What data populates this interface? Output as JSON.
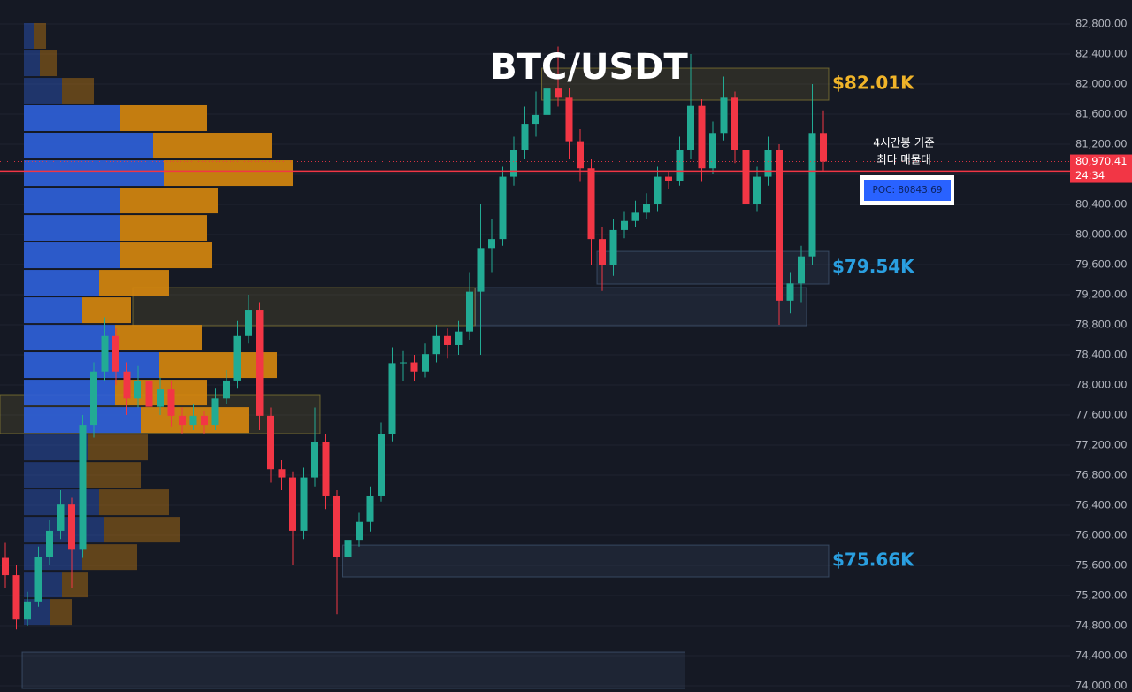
{
  "chart_data": {
    "type": "candlestick",
    "title": "BTC/USDT",
    "ylim": [
      73918,
      83118
    ],
    "yticks": [
      {
        "value": 74000,
        "label": "74,000.00"
      },
      {
        "value": 74400,
        "label": "74,400.00"
      },
      {
        "value": 74800,
        "label": "74,800.00"
      },
      {
        "value": 75200,
        "label": "75,200.00"
      },
      {
        "value": 75600,
        "label": "75,600.00"
      },
      {
        "value": 76000,
        "label": "76,000.00"
      },
      {
        "value": 76400,
        "label": "76,400.00"
      },
      {
        "value": 76800,
        "label": "76,800.00"
      },
      {
        "value": 77200,
        "label": "77,200.00"
      },
      {
        "value": 77600,
        "label": "77,600.00"
      },
      {
        "value": 78000,
        "label": "78,000.00"
      },
      {
        "value": 78400,
        "label": "78,400.00"
      },
      {
        "value": 78800,
        "label": "78,800.00"
      },
      {
        "value": 79200,
        "label": "79,200.00"
      },
      {
        "value": 79600,
        "label": "79,600.00"
      },
      {
        "value": 80000,
        "label": "80,000.00"
      },
      {
        "value": 80400,
        "label": "80,400.00"
      },
      {
        "value": 80800,
        "label": "80,800.00"
      },
      {
        "value": 81200,
        "label": "81,200.00"
      },
      {
        "value": 81600,
        "label": "81,600.00"
      },
      {
        "value": 82000,
        "label": "82,000.00"
      },
      {
        "value": 82400,
        "label": "82,400.00"
      },
      {
        "value": 82800,
        "label": "82,800.00"
      }
    ],
    "grid": true,
    "up_color": "#22ab94",
    "down_color": "#f23645",
    "candles": [
      [
        75700,
        75900,
        75300,
        75470
      ],
      [
        75470,
        75600,
        74750,
        74880
      ],
      [
        74880,
        75250,
        74800,
        75120
      ],
      [
        75120,
        75850,
        75050,
        75710
      ],
      [
        75710,
        76200,
        75600,
        76060
      ],
      [
        76060,
        76600,
        75950,
        76410
      ],
      [
        76410,
        76500,
        75300,
        75820
      ],
      [
        75820,
        77600,
        75700,
        77470
      ],
      [
        77470,
        78300,
        77300,
        78180
      ],
      [
        78180,
        78900,
        78050,
        78650
      ],
      [
        78650,
        78750,
        78000,
        78180
      ],
      [
        78180,
        78300,
        77600,
        77820
      ],
      [
        77820,
        78250,
        77700,
        78060
      ],
      [
        78060,
        78150,
        77250,
        77710
      ],
      [
        77710,
        78100,
        77600,
        77940
      ],
      [
        77940,
        78050,
        77450,
        77590
      ],
      [
        77590,
        77700,
        77350,
        77470
      ],
      [
        77470,
        77750,
        77400,
        77590
      ],
      [
        77590,
        77650,
        77350,
        77470
      ],
      [
        77470,
        77950,
        77400,
        77820
      ],
      [
        77820,
        78200,
        77750,
        78060
      ],
      [
        78060,
        78850,
        77950,
        78650
      ],
      [
        78650,
        79200,
        78550,
        79000
      ],
      [
        79000,
        79100,
        77400,
        77590
      ],
      [
        77590,
        77700,
        76700,
        76880
      ],
      [
        76880,
        77000,
        76600,
        76770
      ],
      [
        76770,
        76850,
        75600,
        76060
      ],
      [
        76060,
        76900,
        75950,
        76770
      ],
      [
        76770,
        77700,
        76650,
        77240
      ],
      [
        77240,
        77350,
        76350,
        76530
      ],
      [
        76530,
        76600,
        74950,
        75710
      ],
      [
        75710,
        76100,
        75450,
        75940
      ],
      [
        75940,
        76300,
        75850,
        76180
      ],
      [
        76180,
        76650,
        76050,
        76530
      ],
      [
        76530,
        77500,
        76450,
        77350
      ],
      [
        77350,
        78500,
        77250,
        78290
      ],
      [
        78290,
        78450,
        78050,
        78300
      ],
      [
        78300,
        78400,
        78050,
        78180
      ],
      [
        78180,
        78550,
        78100,
        78410
      ],
      [
        78410,
        78800,
        78300,
        78650
      ],
      [
        78650,
        78750,
        78350,
        78530
      ],
      [
        78530,
        78850,
        78400,
        78710
      ],
      [
        78710,
        79500,
        78600,
        79240
      ],
      [
        79240,
        80400,
        78400,
        79820
      ],
      [
        79820,
        80200,
        79500,
        79940
      ],
      [
        79940,
        80900,
        79850,
        80770
      ],
      [
        80770,
        81300,
        80650,
        81120
      ],
      [
        81120,
        81700,
        81000,
        81470
      ],
      [
        81470,
        81900,
        81300,
        81590
      ],
      [
        81590,
        82850,
        81450,
        81940
      ],
      [
        81940,
        82500,
        81700,
        81820
      ],
      [
        81820,
        81950,
        81000,
        81240
      ],
      [
        81240,
        81400,
        80700,
        80880
      ],
      [
        80880,
        81000,
        79600,
        79940
      ],
      [
        79940,
        80100,
        79250,
        79590
      ],
      [
        79590,
        80200,
        79450,
        80060
      ],
      [
        80060,
        80300,
        79950,
        80180
      ],
      [
        80180,
        80450,
        80100,
        80290
      ],
      [
        80290,
        80550,
        80200,
        80410
      ],
      [
        80410,
        80900,
        80300,
        80770
      ],
      [
        80770,
        80850,
        80600,
        80710
      ],
      [
        80710,
        81300,
        80650,
        81120
      ],
      [
        81120,
        82400,
        81000,
        81710
      ],
      [
        81710,
        81800,
        80700,
        80880
      ],
      [
        80880,
        81500,
        80800,
        81350
      ],
      [
        81350,
        82100,
        81250,
        81820
      ],
      [
        81820,
        81900,
        80950,
        81120
      ],
      [
        81120,
        81250,
        80200,
        80410
      ],
      [
        80410,
        80900,
        80300,
        80770
      ],
      [
        80770,
        81300,
        80650,
        81120
      ],
      [
        81120,
        81200,
        78800,
        79120
      ],
      [
        79120,
        79500,
        78950,
        79350
      ],
      [
        79350,
        79850,
        79100,
        79710
      ],
      [
        79710,
        82000,
        79600,
        81350
      ],
      [
        81350,
        81650,
        80850,
        80970
      ]
    ],
    "profile_bins": [
      82824,
      82459,
      82094,
      81730,
      81365,
      81000,
      80635,
      80270,
      79906,
      79541,
      79176,
      78811,
      78447,
      78082,
      77717,
      77352,
      76987,
      76623,
      76258,
      75893,
      75528,
      75164,
      74799
    ],
    "profile_buy": [
      11,
      18,
      43,
      109,
      146,
      158,
      109,
      109,
      109,
      85,
      66,
      103,
      153,
      103,
      133,
      72,
      70,
      85,
      91,
      66,
      43,
      30
    ],
    "profile_sell": [
      14,
      19,
      36,
      98,
      134,
      146,
      110,
      98,
      104,
      79,
      55,
      98,
      133,
      104,
      122,
      68,
      63,
      79,
      85,
      62,
      29,
      24
    ],
    "value_area": [
      77352,
      81730
    ],
    "buy_color": "#2f5fd8",
    "sell_color": "#d4850f",
    "zones": [
      {
        "low": 81788,
        "high": 82212,
        "start": 49,
        "end": 74,
        "color": "#c8b43c",
        "label": "$82.01K",
        "label_color": "#f0b429"
      },
      {
        "low": 79341,
        "high": 79776,
        "start": 54,
        "end": 74,
        "color": "#5a7aa0",
        "label": "$79.54K",
        "label_color": "#2a9fe0"
      },
      {
        "low": 78788,
        "high": 79294,
        "start": 43,
        "end": 72,
        "color": "#5a7aa0"
      },
      {
        "low": 78788,
        "high": 79294,
        "start": 12,
        "end": 42,
        "color": "#c8b43c"
      },
      {
        "low": 77353,
        "high": 77871,
        "start": 0,
        "end": 28,
        "color": "#c8b43c"
      },
      {
        "low": 75447,
        "high": 75870,
        "start": 31,
        "end": 74,
        "color": "#5a7aa0",
        "label": "$75.66K",
        "label_color": "#2a9fe0"
      },
      {
        "low": 73965,
        "high": 74447,
        "start": 2,
        "end": 61,
        "color": "#5a7aa0"
      }
    ],
    "poc": 80843.69,
    "poc_label": "POC: 80843.69",
    "last_price": {
      "value": 80970.41,
      "label": "80,970.41"
    },
    "countdown": "24:34",
    "annotation_line1": "4시간봉 기준",
    "annotation_line2": "최다 매물대"
  }
}
